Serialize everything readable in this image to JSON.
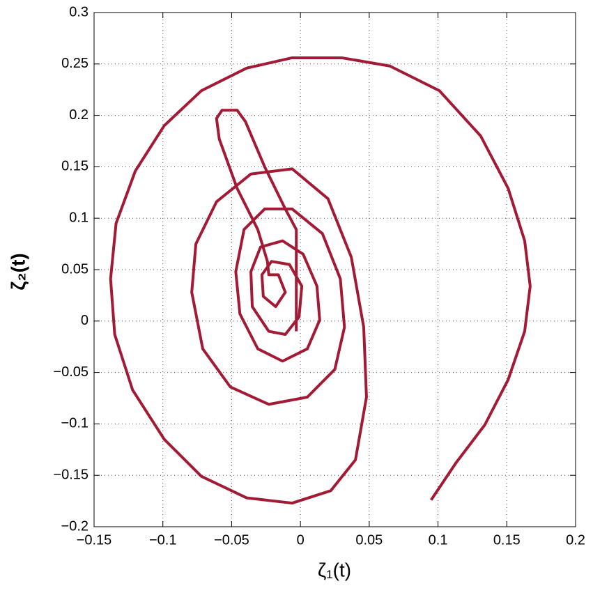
{
  "chart_data": {
    "type": "line",
    "xlabel": "ζ₁(t)",
    "ylabel": "ζ₂(t)",
    "xlim": [
      -0.15,
      0.2
    ],
    "ylim": [
      -0.2,
      0.3
    ],
    "xticks": [
      {
        "value": -0.15,
        "label": "−0.15"
      },
      {
        "value": -0.1,
        "label": "−0.1"
      },
      {
        "value": -0.05,
        "label": "−0.05"
      },
      0,
      0.05,
      0.1,
      0.15,
      0.2
    ],
    "yticks": [
      {
        "value": -0.2,
        "label": "−0.2"
      },
      {
        "value": -0.15,
        "label": "−0.15"
      },
      {
        "value": -0.1,
        "label": "−0.1"
      },
      {
        "value": -0.05,
        "label": "−0.05"
      },
      0,
      0.05,
      0.1,
      0.15,
      0.2,
      0.25,
      0.3
    ],
    "grid": true,
    "x": [
      0.095,
      0.113,
      0.134,
      0.151,
      0.163,
      0.167,
      0.163,
      0.151,
      0.131,
      0.101,
      0.065,
      0.03,
      -0.006,
      -0.039,
      -0.072,
      -0.099,
      -0.12,
      -0.134,
      -0.138,
      -0.135,
      -0.122,
      -0.099,
      -0.072,
      -0.039,
      -0.006,
      0.022,
      0.04,
      0.048,
      0.046,
      0.037,
      0.02,
      -0.006,
      -0.036,
      -0.061,
      -0.076,
      -0.079,
      -0.071,
      -0.051,
      -0.023,
      0.005,
      0.025,
      0.032,
      0.029,
      0.016,
      -0.006,
      -0.026,
      -0.041,
      -0.047,
      -0.044,
      -0.031,
      -0.013,
      0.005,
      0.014,
      0.012,
      0.002,
      -0.013,
      -0.029,
      -0.036,
      -0.035,
      -0.023,
      -0.011,
      -0.001,
      0.001,
      -0.008,
      -0.021,
      -0.028,
      -0.027,
      -0.018,
      -0.011,
      -0.016,
      -0.023,
      -0.024,
      -0.031,
      -0.046,
      -0.059,
      -0.061,
      -0.057,
      -0.046,
      -0.04,
      -0.026,
      -0.011,
      -0.003,
      -0.003,
      -0.003
    ],
    "series": [
      {
        "color": "#a31a35",
        "values": [
          -0.174,
          -0.138,
          -0.101,
          -0.057,
          -0.01,
          0.034,
          0.078,
          0.129,
          0.18,
          0.224,
          0.248,
          0.256,
          0.256,
          0.246,
          0.224,
          0.19,
          0.146,
          0.095,
          0.041,
          -0.013,
          -0.067,
          -0.115,
          -0.151,
          -0.172,
          -0.177,
          -0.165,
          -0.135,
          -0.074,
          -0.006,
          0.062,
          0.119,
          0.148,
          0.143,
          0.116,
          0.075,
          0.028,
          -0.027,
          -0.064,
          -0.081,
          -0.074,
          -0.047,
          -0.006,
          0.041,
          0.085,
          0.109,
          0.109,
          0.089,
          0.048,
          0.007,
          -0.027,
          -0.039,
          -0.027,
          0.001,
          0.034,
          0.065,
          0.078,
          0.072,
          0.048,
          0.014,
          -0.01,
          -0.013,
          0.004,
          0.034,
          0.055,
          0.058,
          0.045,
          0.024,
          0.014,
          0.028,
          0.045,
          0.045,
          0.058,
          0.089,
          0.129,
          0.177,
          0.197,
          0.205,
          0.205,
          0.194,
          0.15,
          0.109,
          0.089,
          0.041,
          -0.01
        ]
      }
    ]
  }
}
